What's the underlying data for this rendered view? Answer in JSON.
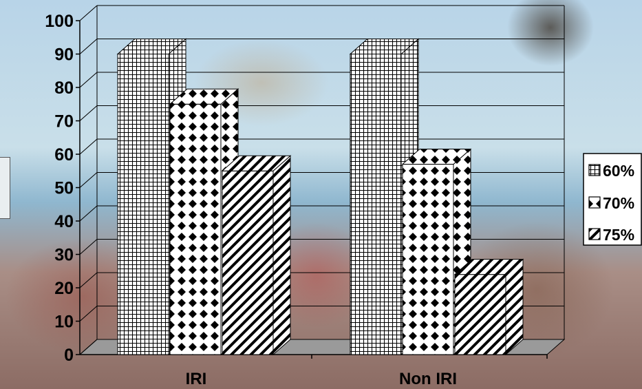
{
  "chart_data": {
    "type": "bar",
    "title": "",
    "xlabel": "",
    "ylabel": "",
    "categories": [
      "IRI",
      "Non IRI"
    ],
    "series": [
      {
        "name": "60%",
        "values": [
          90,
          90
        ]
      },
      {
        "name": "70%",
        "values": [
          75,
          57
        ]
      },
      {
        "name": "75%",
        "values": [
          55,
          24
        ]
      }
    ],
    "ylim": [
      0,
      100
    ],
    "yticks": [
      0,
      10,
      20,
      30,
      40,
      50,
      60,
      70,
      80,
      90,
      100
    ],
    "grid": true,
    "three_d": true,
    "legend_position": "right"
  },
  "colors": {
    "bar_fill": "#ffffff",
    "bar_pattern": "#000000",
    "gridline": "#000000"
  }
}
